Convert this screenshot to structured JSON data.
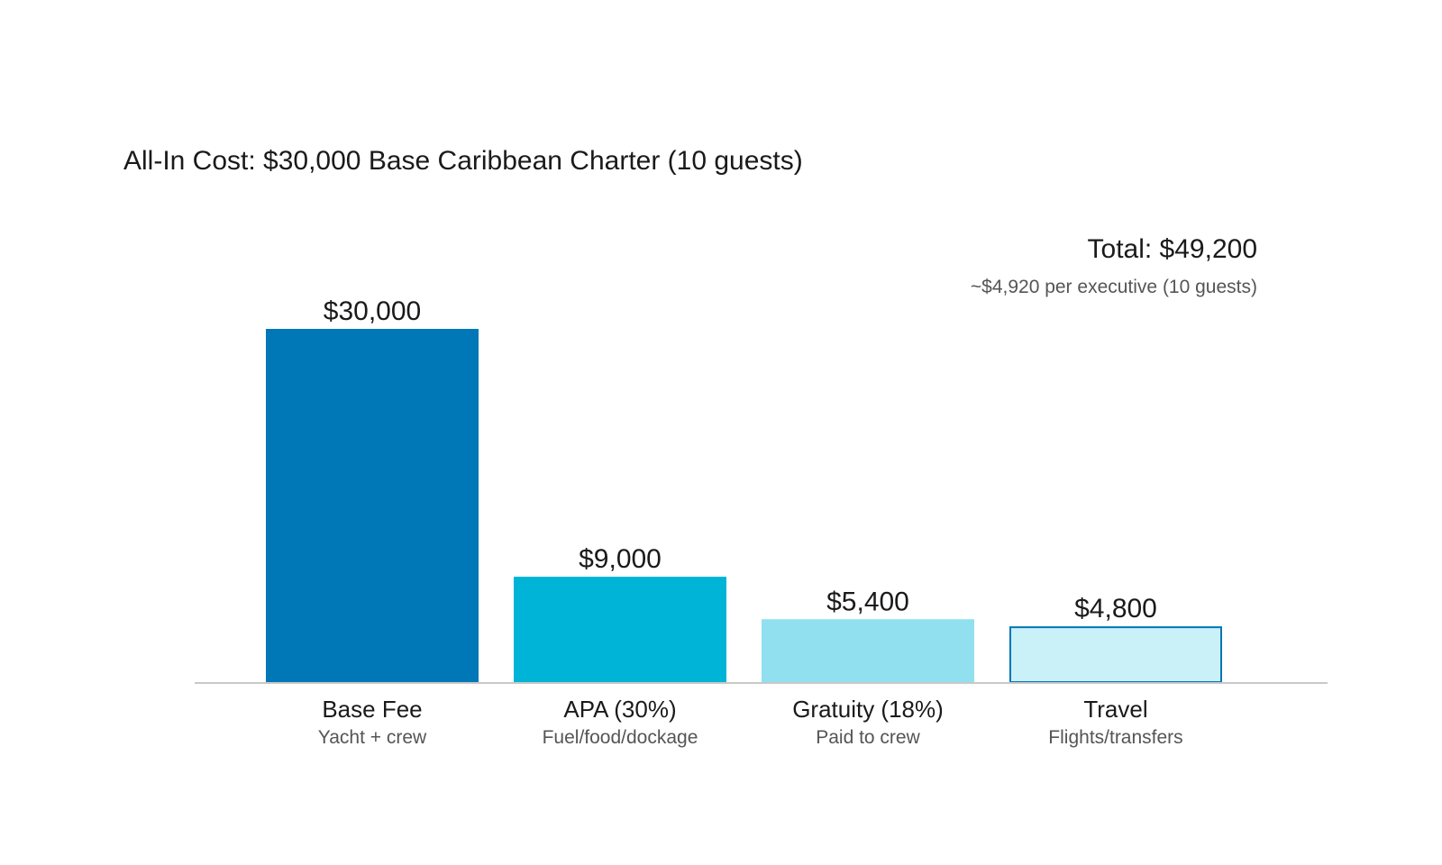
{
  "chart_data": {
    "type": "bar",
    "title": "All-In Cost: $30,000 Base Caribbean Charter (10 guests)",
    "categories": [
      "Base Fee",
      "APA (30%)",
      "Gratuity (18%)",
      "Travel"
    ],
    "subcategories": [
      "Yacht + crew",
      "Fuel/food/dockage",
      "Paid to crew",
      "Flights/transfers"
    ],
    "values": [
      30000,
      9000,
      5400,
      4800
    ],
    "value_labels": [
      "$30,000",
      "$9,000",
      "$5,400",
      "$4,800"
    ],
    "colors": [
      "#0077b6",
      "#00b4d8",
      "#90e0ef",
      "#caf0f8"
    ],
    "outline_color": "#0077b6",
    "ylim": [
      0,
      30000
    ],
    "xlabel": "",
    "ylabel": "",
    "grid": false,
    "total": {
      "label": "Total: $49,200",
      "sublabel": "~$4,920 per executive (10 guests)"
    }
  }
}
